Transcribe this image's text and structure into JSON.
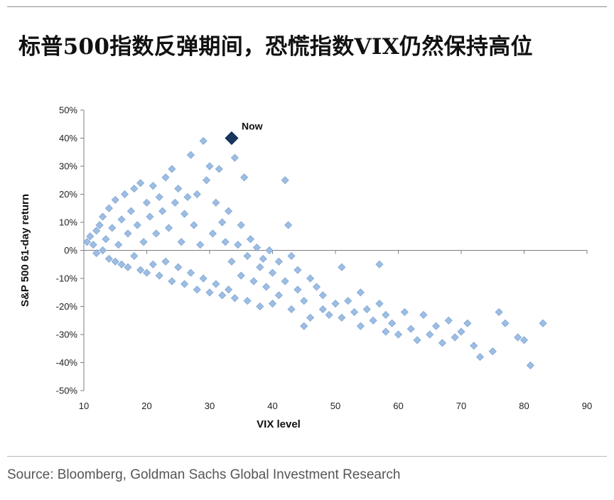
{
  "header": {
    "title": "标普500指数反弹期间，恐慌指数VIX仍然保持高位"
  },
  "footer": {
    "source": "Source: Bloomberg, Goldman Sachs Global Investment Research"
  },
  "chart_data": {
    "type": "scatter",
    "xlabel": "VIX level",
    "ylabel": "S&P 500 61-day return",
    "xlim": [
      10,
      90
    ],
    "ylim": [
      -50,
      50
    ],
    "x_ticks": [
      "10",
      "20",
      "30",
      "40",
      "50",
      "60",
      "70",
      "80",
      "90"
    ],
    "y_ticks": [
      "50%",
      "40%",
      "30%",
      "20%",
      "10%",
      "0%",
      "-10%",
      "-20%",
      "-30%",
      "-40%",
      "-50%"
    ],
    "grid": false,
    "marker": "diamond",
    "series": [
      {
        "color": "#9dbde3",
        "points": [
          [
            10.5,
            3
          ],
          [
            11,
            5
          ],
          [
            11.5,
            2
          ],
          [
            12,
            7
          ],
          [
            12,
            -1
          ],
          [
            12.5,
            9
          ],
          [
            13,
            12
          ],
          [
            13,
            0
          ],
          [
            13.5,
            4
          ],
          [
            14,
            15
          ],
          [
            14,
            -3
          ],
          [
            14.5,
            8
          ],
          [
            15,
            18
          ],
          [
            15,
            -4
          ],
          [
            15.5,
            2
          ],
          [
            16,
            11
          ],
          [
            16,
            -5
          ],
          [
            16.5,
            20
          ],
          [
            17,
            6
          ],
          [
            17,
            -6
          ],
          [
            17.5,
            14
          ],
          [
            18,
            22
          ],
          [
            18,
            -2
          ],
          [
            18.5,
            9
          ],
          [
            19,
            24
          ],
          [
            19,
            -7
          ],
          [
            19.5,
            3
          ],
          [
            20,
            17
          ],
          [
            20,
            -8
          ],
          [
            20.5,
            12
          ],
          [
            21,
            23
          ],
          [
            21,
            -5
          ],
          [
            21.5,
            6
          ],
          [
            22,
            19
          ],
          [
            22,
            -9
          ],
          [
            22.5,
            14
          ],
          [
            23,
            26
          ],
          [
            23,
            -4
          ],
          [
            23.5,
            8
          ],
          [
            24,
            29
          ],
          [
            24,
            -11
          ],
          [
            24.5,
            17
          ],
          [
            25,
            22
          ],
          [
            25,
            -6
          ],
          [
            25.5,
            3
          ],
          [
            26,
            13
          ],
          [
            26,
            -12
          ],
          [
            26.5,
            19
          ],
          [
            27,
            34
          ],
          [
            27,
            -8
          ],
          [
            27.5,
            9
          ],
          [
            28,
            20
          ],
          [
            28,
            -14
          ],
          [
            28.5,
            2
          ],
          [
            29,
            39
          ],
          [
            29,
            -10
          ],
          [
            29.5,
            25
          ],
          [
            30,
            30
          ],
          [
            30,
            -15
          ],
          [
            30.5,
            6
          ],
          [
            31,
            17
          ],
          [
            31,
            -12
          ],
          [
            31.5,
            29
          ],
          [
            32,
            10
          ],
          [
            32,
            -16
          ],
          [
            32.5,
            3
          ],
          [
            33,
            14
          ],
          [
            33,
            -14
          ],
          [
            33.5,
            -4
          ],
          [
            34,
            33
          ],
          [
            34,
            -17
          ],
          [
            34.5,
            2
          ],
          [
            35,
            9
          ],
          [
            35,
            -9
          ],
          [
            35.5,
            26
          ],
          [
            36,
            -2
          ],
          [
            36,
            -18
          ],
          [
            36.5,
            4
          ],
          [
            37,
            -11
          ],
          [
            37.5,
            1
          ],
          [
            38,
            -6
          ],
          [
            38,
            -20
          ],
          [
            38.5,
            -3
          ],
          [
            39,
            -13
          ],
          [
            39.5,
            0
          ],
          [
            40,
            -8
          ],
          [
            40,
            -19
          ],
          [
            41,
            -4
          ],
          [
            41,
            -16
          ],
          [
            42,
            25
          ],
          [
            42,
            -11
          ],
          [
            42.5,
            9
          ],
          [
            43,
            -2
          ],
          [
            43,
            -21
          ],
          [
            44,
            -14
          ],
          [
            44,
            -7
          ],
          [
            45,
            -27
          ],
          [
            45,
            -18
          ],
          [
            46,
            -10
          ],
          [
            46,
            -24
          ],
          [
            47,
            -13
          ],
          [
            48,
            -21
          ],
          [
            48,
            -16
          ],
          [
            49,
            -23
          ],
          [
            50,
            -19
          ],
          [
            51,
            -6
          ],
          [
            51,
            -24
          ],
          [
            52,
            -18
          ],
          [
            53,
            -22
          ],
          [
            54,
            -15
          ],
          [
            54,
            -27
          ],
          [
            55,
            -21
          ],
          [
            56,
            -25
          ],
          [
            57,
            -5
          ],
          [
            57,
            -19
          ],
          [
            58,
            -29
          ],
          [
            58,
            -23
          ],
          [
            59,
            -26
          ],
          [
            60,
            -30
          ],
          [
            61,
            -22
          ],
          [
            62,
            -28
          ],
          [
            63,
            -32
          ],
          [
            64,
            -23
          ],
          [
            65,
            -30
          ],
          [
            66,
            -27
          ],
          [
            67,
            -33
          ],
          [
            68,
            -25
          ],
          [
            69,
            -31
          ],
          [
            70,
            -29
          ],
          [
            71,
            -26
          ],
          [
            72,
            -34
          ],
          [
            73,
            -38
          ],
          [
            75,
            -36
          ],
          [
            76,
            -22
          ],
          [
            77,
            -26
          ],
          [
            79,
            -31
          ],
          [
            80,
            -32
          ],
          [
            81,
            -41
          ],
          [
            83,
            -26
          ]
        ]
      },
      {
        "name": "Now",
        "color": "#17375e",
        "points": [
          [
            33.5,
            40
          ]
        ]
      }
    ],
    "annotations": [
      {
        "text": "Now",
        "x": 33.5,
        "y": 40
      }
    ]
  }
}
